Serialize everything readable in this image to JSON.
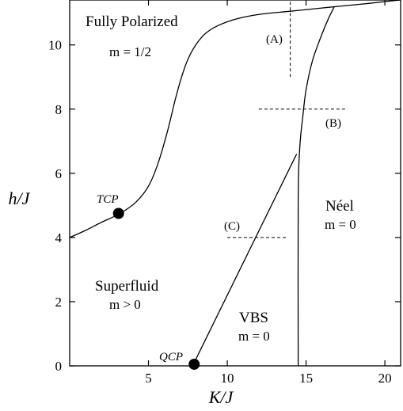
{
  "chart_data": {
    "type": "line",
    "xlabel": "K/J",
    "ylabel": "h/J",
    "xlim": [
      0,
      21
    ],
    "ylim": [
      0,
      11.4
    ],
    "xticks": [
      5,
      10,
      15,
      20
    ],
    "yticks": [
      0,
      2,
      4,
      6,
      8,
      10
    ],
    "grid": false,
    "series": [
      {
        "key": "polarization-boundary",
        "x": [
          0,
          1,
          2,
          3.2,
          4.2,
          5,
          5.6,
          6.2,
          6.7,
          7.1,
          7.5,
          8,
          8.6,
          9.4,
          10.5,
          12,
          14,
          16,
          17,
          18.5,
          20,
          21
        ],
        "y": [
          4.0,
          4.22,
          4.47,
          4.75,
          5.1,
          5.6,
          6.3,
          7.3,
          8.3,
          9.0,
          9.55,
          10.0,
          10.35,
          10.6,
          10.8,
          10.95,
          11.05,
          11.15,
          11.2,
          11.27,
          11.35,
          11.4
        ]
      },
      {
        "key": "vbs-superfluid-boundary",
        "x": [
          7.8,
          14.4
        ],
        "y": [
          0,
          6.6
        ]
      },
      {
        "key": "neel-vbs-boundary",
        "x": [
          14.5,
          14.5,
          14.6,
          14.8,
          15.0,
          15.4,
          15.9,
          16.4,
          16.8
        ],
        "y": [
          0,
          5.2,
          6.8,
          7.8,
          8.6,
          9.5,
          10.2,
          10.8,
          11.2
        ]
      }
    ],
    "cuts": [
      {
        "label": "(A)",
        "orientation": "vertical",
        "x": 14.0,
        "y_range": [
          9.0,
          11.4
        ]
      },
      {
        "label": "(B)",
        "orientation": "horizontal",
        "y": 8.0,
        "x_range": [
          12.0,
          17.5
        ]
      },
      {
        "label": "(C)",
        "orientation": "horizontal",
        "y": 4.0,
        "x_range": [
          10.0,
          13.8
        ]
      }
    ],
    "points": [
      {
        "label": "TCP",
        "x": 3.1,
        "y": 4.75
      },
      {
        "label": "QCP",
        "x": 7.9,
        "y": 0.05
      }
    ],
    "regions": [
      {
        "key": "polarized",
        "name": "Fully Polarized",
        "detail": "m = 1/2"
      },
      {
        "key": "superfluid",
        "name": "Superfluid",
        "detail": "m > 0"
      },
      {
        "key": "vbs",
        "name": "VBS",
        "detail": "m = 0"
      },
      {
        "key": "neel",
        "name": "Néel",
        "detail": "m = 0"
      }
    ]
  }
}
